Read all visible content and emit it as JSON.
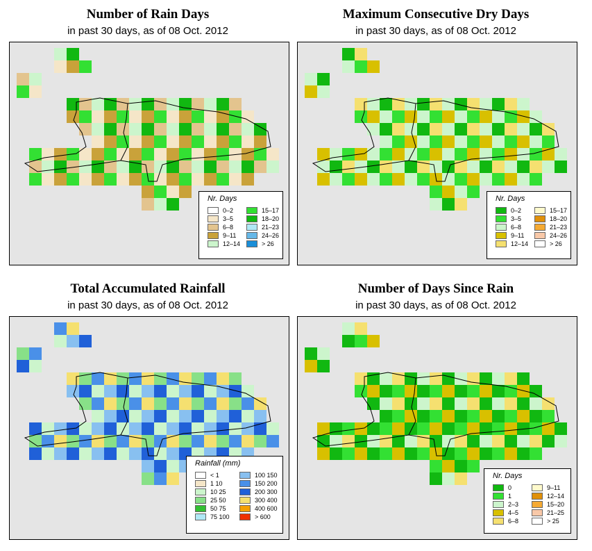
{
  "panels": [
    {
      "id": "rain-days",
      "title": "Number of Rain Days",
      "subtitle": "in past 30 days, as of  08 Oct. 2012",
      "legend": {
        "title": "Nr. Days",
        "items": [
          {
            "label": "0–2",
            "color": "#ffffff"
          },
          {
            "label": "3–5",
            "color": "#f5e6c8"
          },
          {
            "label": "6–8",
            "color": "#e3c48e"
          },
          {
            "label": "9–11",
            "color": "#c9a23a"
          },
          {
            "label": "12–14",
            "color": "#ccf5cc"
          },
          {
            "label": "15–17",
            "color": "#33e033"
          },
          {
            "label": "18–20",
            "color": "#11b811"
          },
          {
            "label": "21–23",
            "color": "#b0e8f5"
          },
          {
            "label": "24–26",
            "color": "#66b8e8"
          },
          {
            "label": "> 26",
            "color": "#1a8ed8"
          }
        ]
      }
    },
    {
      "id": "max-dry-days",
      "title": "Maximum Consecutive Dry Days",
      "subtitle": "in past 30 days, as of  08 Oct. 2012",
      "legend": {
        "title": "Nr. Days",
        "items": [
          {
            "label": "0–2",
            "color": "#11b811"
          },
          {
            "label": "3–5",
            "color": "#33e033"
          },
          {
            "label": "6–8",
            "color": "#ccf5cc"
          },
          {
            "label": "9–11",
            "color": "#d8c000"
          },
          {
            "label": "12–14",
            "color": "#f5e070"
          },
          {
            "label": "15–17",
            "color": "#fffacc"
          },
          {
            "label": "18–20",
            "color": "#e0900a"
          },
          {
            "label": "21–23",
            "color": "#f5aa33"
          },
          {
            "label": "24–26",
            "color": "#f8c8a8"
          },
          {
            "label": "> 26",
            "color": "#ffffff"
          }
        ]
      }
    },
    {
      "id": "total-rainfall",
      "title": "Total Accumulated Rainfall",
      "subtitle": "in past 30 days, as of  08 Oct. 2012",
      "legend": {
        "title": "Rainfall (mm)",
        "items": [
          {
            "label": "< 1",
            "color": "#ffffff"
          },
          {
            "label": "1    10",
            "color": "#f5e6c8"
          },
          {
            "label": "10    25",
            "color": "#ccf5cc"
          },
          {
            "label": "25    50",
            "color": "#88e088"
          },
          {
            "label": "50    75",
            "color": "#33c033"
          },
          {
            "label": "75    100",
            "color": "#b0e8f5"
          },
          {
            "label": "100    150",
            "color": "#88c0f0"
          },
          {
            "label": "150    200",
            "color": "#4a90e8"
          },
          {
            "label": "200    300",
            "color": "#2060d8"
          },
          {
            "label": "300    400",
            "color": "#f5e070"
          },
          {
            "label": "400    600",
            "color": "#f5a000"
          },
          {
            "label": "> 600",
            "color": "#f03000"
          }
        ]
      }
    },
    {
      "id": "days-since-rain",
      "title": "Number of Days Since Rain",
      "subtitle": "in past 30 days, as of  08 Oct. 2012",
      "legend": {
        "title": "Nr. Days",
        "items": [
          {
            "label": "0",
            "color": "#11b811"
          },
          {
            "label": "1",
            "color": "#33e033"
          },
          {
            "label": "2–3",
            "color": "#ccf5cc"
          },
          {
            "label": "4–5",
            "color": "#d8c000"
          },
          {
            "label": "6–8",
            "color": "#f5e070"
          },
          {
            "label": "9–11",
            "color": "#fffacc"
          },
          {
            "label": "12–14",
            "color": "#e0900a"
          },
          {
            "label": "15–20",
            "color": "#f5aa33"
          },
          {
            "label": "21–25",
            "color": "#f8c8a8"
          },
          {
            "label": "> 25",
            "color": "#ffffff"
          }
        ]
      }
    }
  ]
}
